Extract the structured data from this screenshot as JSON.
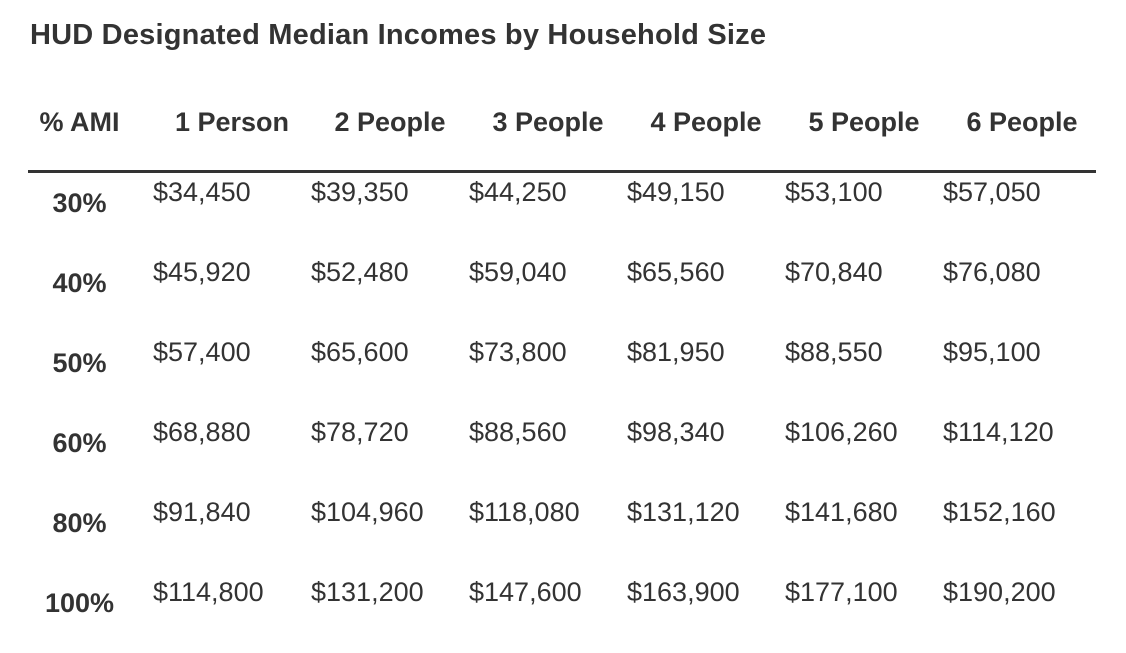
{
  "chart_data": {
    "type": "table",
    "title": "HUD Designated Median Incomes by Household Size",
    "columns": [
      "% AMI",
      "1 Person",
      "2 People",
      "3 People",
      "4 People",
      "5 People",
      "6 People"
    ],
    "row_label_column": "% AMI",
    "rows": [
      {
        "ami": "30%",
        "values": [
          "$34,450",
          "$39,350",
          "$44,250",
          "$49,150",
          "$53,100",
          "$57,050"
        ]
      },
      {
        "ami": "40%",
        "values": [
          "$45,920",
          "$52,480",
          "$59,040",
          "$65,560",
          "$70,840",
          "$76,080"
        ]
      },
      {
        "ami": "50%",
        "values": [
          "$57,400",
          "$65,600",
          "$73,800",
          "$81,950",
          "$88,550",
          "$95,100"
        ]
      },
      {
        "ami": "60%",
        "values": [
          "$68,880",
          "$78,720",
          "$88,560",
          "$98,340",
          "$106,260",
          "$114,120"
        ]
      },
      {
        "ami": "80%",
        "values": [
          "$91,840",
          "$104,960",
          "$118,080",
          "$131,120",
          "$141,680",
          "$152,160"
        ]
      },
      {
        "ami": "100%",
        "values": [
          "$114,800",
          "$131,200",
          "$147,600",
          "$163,900",
          "$177,100",
          "$190,200"
        ]
      }
    ],
    "layout": {
      "legend_position": "none",
      "grid": "header-divider-only"
    },
    "colors": {
      "text": "#333333",
      "divider": "#333333",
      "background": "#ffffff"
    }
  }
}
